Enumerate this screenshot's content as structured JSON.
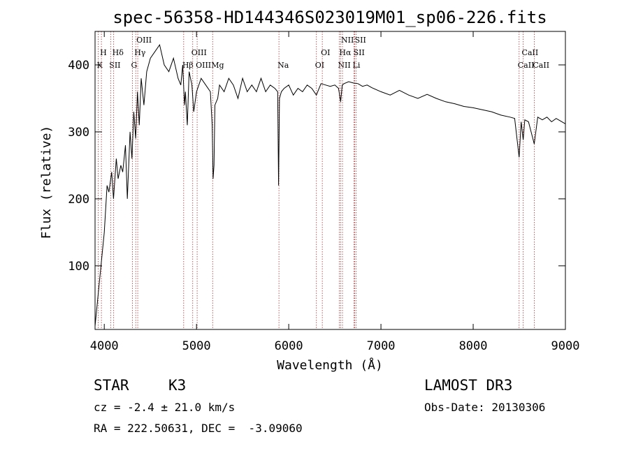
{
  "chart_data": {
    "type": "line",
    "title": "spec-56358-HD144346S023019M01_sp06-226.fits",
    "xlabel": "Wavelength (Å)",
    "ylabel": "Flux (relative)",
    "xlim": [
      3900,
      9000
    ],
    "ylim": [
      5,
      450
    ],
    "x_ticks": [
      4000,
      5000,
      6000,
      7000,
      8000,
      9000
    ],
    "y_ticks": [
      100,
      200,
      300,
      400
    ],
    "grid": false,
    "legend": "none",
    "series": [
      {
        "x": [
          3900,
          3950,
          4000,
          4030,
          4050,
          4080,
          4100,
          4130,
          4150,
          4180,
          4200,
          4230,
          4250,
          4280,
          4300,
          4320,
          4340,
          4360,
          4380,
          4400,
          4430,
          4460,
          4500,
          4550,
          4600,
          4650,
          4700,
          4750,
          4800,
          4830,
          4850,
          4870,
          4880,
          4900,
          4920,
          4950,
          4970,
          5000,
          5050,
          5100,
          5150,
          5170,
          5180,
          5190,
          5200,
          5230,
          5250,
          5300,
          5350,
          5400,
          5450,
          5500,
          5550,
          5600,
          5650,
          5700,
          5750,
          5800,
          5850,
          5880,
          5890,
          5900,
          5920,
          5950,
          6000,
          6050,
          6100,
          6150,
          6200,
          6250,
          6300,
          6350,
          6400,
          6450,
          6500,
          6540,
          6563,
          6580,
          6600,
          6650,
          6700,
          6750,
          6800,
          6850,
          6900,
          7000,
          7100,
          7200,
          7300,
          7400,
          7500,
          7600,
          7700,
          7800,
          7900,
          8000,
          8100,
          8200,
          8300,
          8400,
          8450,
          8498,
          8520,
          8542,
          8560,
          8600,
          8662,
          8700,
          8750,
          8800,
          8850,
          8900,
          8950,
          9000
        ],
        "y": [
          10,
          80,
          150,
          220,
          210,
          240,
          200,
          260,
          230,
          250,
          240,
          280,
          200,
          300,
          260,
          330,
          290,
          360,
          310,
          380,
          340,
          390,
          410,
          420,
          430,
          400,
          390,
          410,
          380,
          370,
          400,
          340,
          360,
          310,
          390,
          370,
          330,
          360,
          380,
          370,
          360,
          310,
          230,
          250,
          340,
          350,
          370,
          360,
          380,
          370,
          350,
          380,
          360,
          370,
          360,
          380,
          360,
          370,
          365,
          360,
          220,
          350,
          360,
          365,
          370,
          355,
          365,
          360,
          370,
          365,
          355,
          372,
          370,
          368,
          370,
          365,
          345,
          370,
          372,
          375,
          373,
          372,
          368,
          370,
          366,
          360,
          355,
          362,
          355,
          350,
          356,
          350,
          345,
          342,
          338,
          336,
          333,
          330,
          325,
          322,
          320,
          262,
          315,
          288,
          318,
          315,
          282,
          322,
          318,
          322,
          315,
          320,
          316,
          312
        ]
      }
    ],
    "line_markers": [
      {
        "label": "K",
        "wavelength": 3934
      },
      {
        "label": "H",
        "wavelength": 3969
      },
      {
        "label": "SII",
        "wavelength": 4069
      },
      {
        "label": "Hδ",
        "wavelength": 4102
      },
      {
        "label": "G",
        "wavelength": 4305
      },
      {
        "label": "Hγ",
        "wavelength": 4341
      },
      {
        "label": "OIII",
        "wavelength": 4363
      },
      {
        "label": "Hβ",
        "wavelength": 4861
      },
      {
        "label": "OIII",
        "wavelength": 4959
      },
      {
        "label": "OIII",
        "wavelength": 5007
      },
      {
        "label": "Mg",
        "wavelength": 5175
      },
      {
        "label": "Na",
        "wavelength": 5894
      },
      {
        "label": "OI",
        "wavelength": 6300
      },
      {
        "label": "OI",
        "wavelength": 6364
      },
      {
        "label": "NII",
        "wavelength": 6548
      },
      {
        "label": "Hα",
        "wavelength": 6563
      },
      {
        "label": "NII",
        "wavelength": 6583
      },
      {
        "label": "Li",
        "wavelength": 6708
      },
      {
        "label": "SII",
        "wavelength": 6716
      },
      {
        "label": "SII",
        "wavelength": 6731
      },
      {
        "label": "CaII",
        "wavelength": 8498
      },
      {
        "label": "CaII",
        "wavelength": 8542
      },
      {
        "label": "CaII",
        "wavelength": 8662
      }
    ]
  },
  "info": {
    "class_label": "STAR",
    "subclass": "K3",
    "survey": "LAMOST DR3",
    "cz_line": "cz = -2.4 ± 21.0 km/s",
    "obs_date": "Obs-Date: 20130306",
    "coords": "RA = 222.50631, DEC =  -3.09060"
  }
}
